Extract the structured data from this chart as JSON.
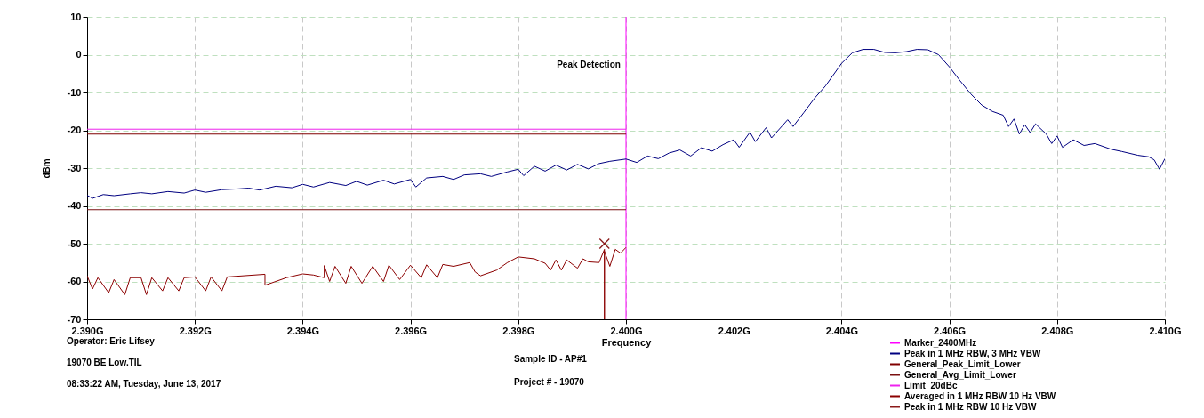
{
  "chart_data": {
    "type": "line",
    "subtitle": "Peak Detection",
    "xlabel": "Frequency",
    "ylabel": "dBm",
    "xlim": [
      2.39,
      2.41
    ],
    "xticks": [
      {
        "value": 2.39,
        "label": "2.390G"
      },
      {
        "value": 2.392,
        "label": "2.392G"
      },
      {
        "value": 2.394,
        "label": "2.394G"
      },
      {
        "value": 2.396,
        "label": "2.396G"
      },
      {
        "value": 2.398,
        "label": "2.398G"
      },
      {
        "value": 2.4,
        "label": "2.400G"
      },
      {
        "value": 2.402,
        "label": "2.402G"
      },
      {
        "value": 2.404,
        "label": "2.404G"
      },
      {
        "value": 2.406,
        "label": "2.406G"
      },
      {
        "value": 2.408,
        "label": "2.408G"
      },
      {
        "value": 2.41,
        "label": "2.410G"
      }
    ],
    "ylim": [
      -70,
      10
    ],
    "yticks": [
      -70,
      -60,
      -50,
      -40,
      -30,
      -20,
      -10,
      0,
      10
    ],
    "grid": true,
    "legend": "bottom right",
    "annotations": [
      "Operator: Eric Lifsey",
      "19070 BE Low.TIL",
      "08:33:22 AM, Tuesday, June 13, 2017",
      "Sample ID - AP#1",
      "Project # - 19070"
    ],
    "series": [
      {
        "name": "Marker_2400MHz",
        "type": "line",
        "color": "#ff00ff",
        "x": [
          2.4,
          2.4
        ],
        "values": [
          -70,
          10
        ]
      },
      {
        "name": "Peak in 1 MHz RBW, 3 MHz VBW",
        "type": "line",
        "color": "#000080",
        "x": [
          2.39,
          2.3901,
          2.3903,
          2.3905,
          2.3908,
          2.391,
          2.3912,
          2.3915,
          2.3918,
          2.392,
          2.3922,
          2.3925,
          2.3928,
          2.393,
          2.3932,
          2.3935,
          2.3938,
          2.394,
          2.3942,
          2.3945,
          2.3948,
          2.395,
          2.3952,
          2.3955,
          2.3957,
          2.396,
          2.3961,
          2.3963,
          2.3966,
          2.3968,
          2.397,
          2.3973,
          2.3975,
          2.3978,
          2.398,
          2.3981,
          2.3983,
          2.3985,
          2.3987,
          2.3989,
          2.3991,
          2.3993,
          2.3995,
          2.3997,
          2.3999,
          2.4,
          2.4002,
          2.4004,
          2.4006,
          2.4008,
          2.401,
          2.4012,
          2.4014,
          2.4016,
          2.4018,
          2.402,
          2.4021,
          2.4023,
          2.4024,
          2.4026,
          2.4027,
          2.4029,
          2.403,
          2.4031,
          2.4033,
          2.4035,
          2.4037,
          2.404,
          2.4042,
          2.4044,
          2.4046,
          2.4048,
          2.405,
          2.4052,
          2.4054,
          2.4056,
          2.4058,
          2.406,
          2.4062,
          2.4064,
          2.4066,
          2.4068,
          2.407,
          2.4071,
          2.4072,
          2.4073,
          2.4074,
          2.4075,
          2.4076,
          2.4078,
          2.4079,
          2.408,
          2.4081,
          2.4083,
          2.4085,
          2.4087,
          2.409,
          2.4092,
          2.4095,
          2.4097,
          2.4098,
          2.4099,
          2.41
        ],
        "values": [
          -37.2,
          -38,
          -37,
          -37.3,
          -36.8,
          -36.5,
          -36.8,
          -36.2,
          -36.6,
          -35.8,
          -36.4,
          -35.7,
          -35.5,
          -35.3,
          -35.8,
          -34.8,
          -35.2,
          -34.3,
          -35,
          -33.8,
          -34.6,
          -33.5,
          -34.5,
          -33.2,
          -34.2,
          -33,
          -35,
          -32.6,
          -32.2,
          -33,
          -31.8,
          -31.5,
          -32.2,
          -31,
          -30.3,
          -32,
          -29.5,
          -30.8,
          -29.2,
          -30.5,
          -29,
          -30.2,
          -28.8,
          -28.2,
          -27.8,
          -27.6,
          -28.5,
          -26.8,
          -27.5,
          -26,
          -25.2,
          -26.8,
          -24.6,
          -25.5,
          -23.8,
          -22.5,
          -24.5,
          -20.5,
          -23,
          -19.3,
          -22,
          -18.8,
          -17.2,
          -19,
          -15.3,
          -11.5,
          -8.3,
          -2.3,
          0.5,
          1.4,
          1.4,
          0.6,
          0.5,
          0.8,
          1.4,
          1.3,
          0,
          -3.2,
          -6.9,
          -10.4,
          -13.3,
          -15,
          -16,
          -19,
          -17,
          -21,
          -18.5,
          -20.6,
          -18.3,
          -21,
          -23.5,
          -21.5,
          -24.5,
          -22.5,
          -24,
          -23.5,
          -25,
          -25.6,
          -26.6,
          -27,
          -27.8,
          -30.3,
          -27.5
        ]
      },
      {
        "name": "General_Peak_Limit_Lower",
        "type": "line",
        "color": "#800000",
        "x": [
          2.39,
          2.4
        ],
        "values": [
          -21,
          -21
        ]
      },
      {
        "name": "General_Avg_Limit_Lower",
        "type": "line",
        "color": "#7a1010",
        "x": [
          2.39,
          2.4
        ],
        "values": [
          -41,
          -41
        ]
      },
      {
        "name": "Limit_20dBc",
        "type": "line",
        "color": "#ee22ee",
        "x": [
          2.39,
          2.4
        ],
        "values": [
          -19.7,
          -19.7
        ]
      },
      {
        "name": "Averaged in 1 MHz RBW 10 Hz VBW",
        "type": "line",
        "color": "#8b0000",
        "x": [
          2.39,
          2.3901,
          2.3902,
          2.3904,
          2.3905,
          2.3907,
          2.3908,
          2.391,
          2.3911,
          2.3912,
          2.3914,
          2.3915,
          2.3917,
          2.3918,
          2.392,
          2.3922,
          2.3923,
          2.3925,
          2.3926,
          2.3933,
          2.3933,
          2.3937,
          2.394,
          2.3942,
          2.3944,
          2.3944,
          2.3945,
          2.3946,
          2.3948,
          2.3949,
          2.3951,
          2.3953,
          2.3955,
          2.3956,
          2.3958,
          2.396,
          2.3962,
          2.3963,
          2.3965,
          2.3966,
          2.3968,
          2.3971,
          2.3972,
          2.3973,
          2.3976,
          2.3978,
          2.398,
          2.3983,
          2.3985,
          2.3986,
          2.3987,
          2.3988,
          2.3989,
          2.3991,
          2.3992,
          2.3993,
          2.3995,
          2.3996,
          2.3996,
          2.3996,
          2.3997,
          2.3998,
          2.3999,
          2.4
        ],
        "values": [
          -58.5,
          -62,
          -59,
          -63,
          -59.5,
          -63.5,
          -59,
          -59,
          -63.5,
          -59,
          -62.5,
          -59,
          -62.5,
          -59,
          -58.8,
          -62.5,
          -58.8,
          -62.5,
          -58.8,
          -58.1,
          -61,
          -59,
          -58,
          -58.3,
          -59,
          -55.8,
          -60,
          -56,
          -60.5,
          -56,
          -60.5,
          -56,
          -60,
          -55.7,
          -59.5,
          -55.7,
          -59,
          -55.6,
          -59,
          -55.5,
          -56,
          -55,
          -57.5,
          -58.5,
          -57,
          -55,
          -53.5,
          -54,
          -55.2,
          -57,
          -54.3,
          -57,
          -54.3,
          -56.5,
          -54,
          -54.8,
          -55,
          -51.5,
          -70,
          -52,
          -56,
          -51.5,
          -52.5,
          -51
        ]
      },
      {
        "name": "Peak in 1 MHz RBW 10 Hz VBW",
        "type": "scatter",
        "marker": "cross",
        "color": "#8b1a1a",
        "x": [
          2.3996
        ],
        "values": [
          -50
        ]
      }
    ]
  }
}
